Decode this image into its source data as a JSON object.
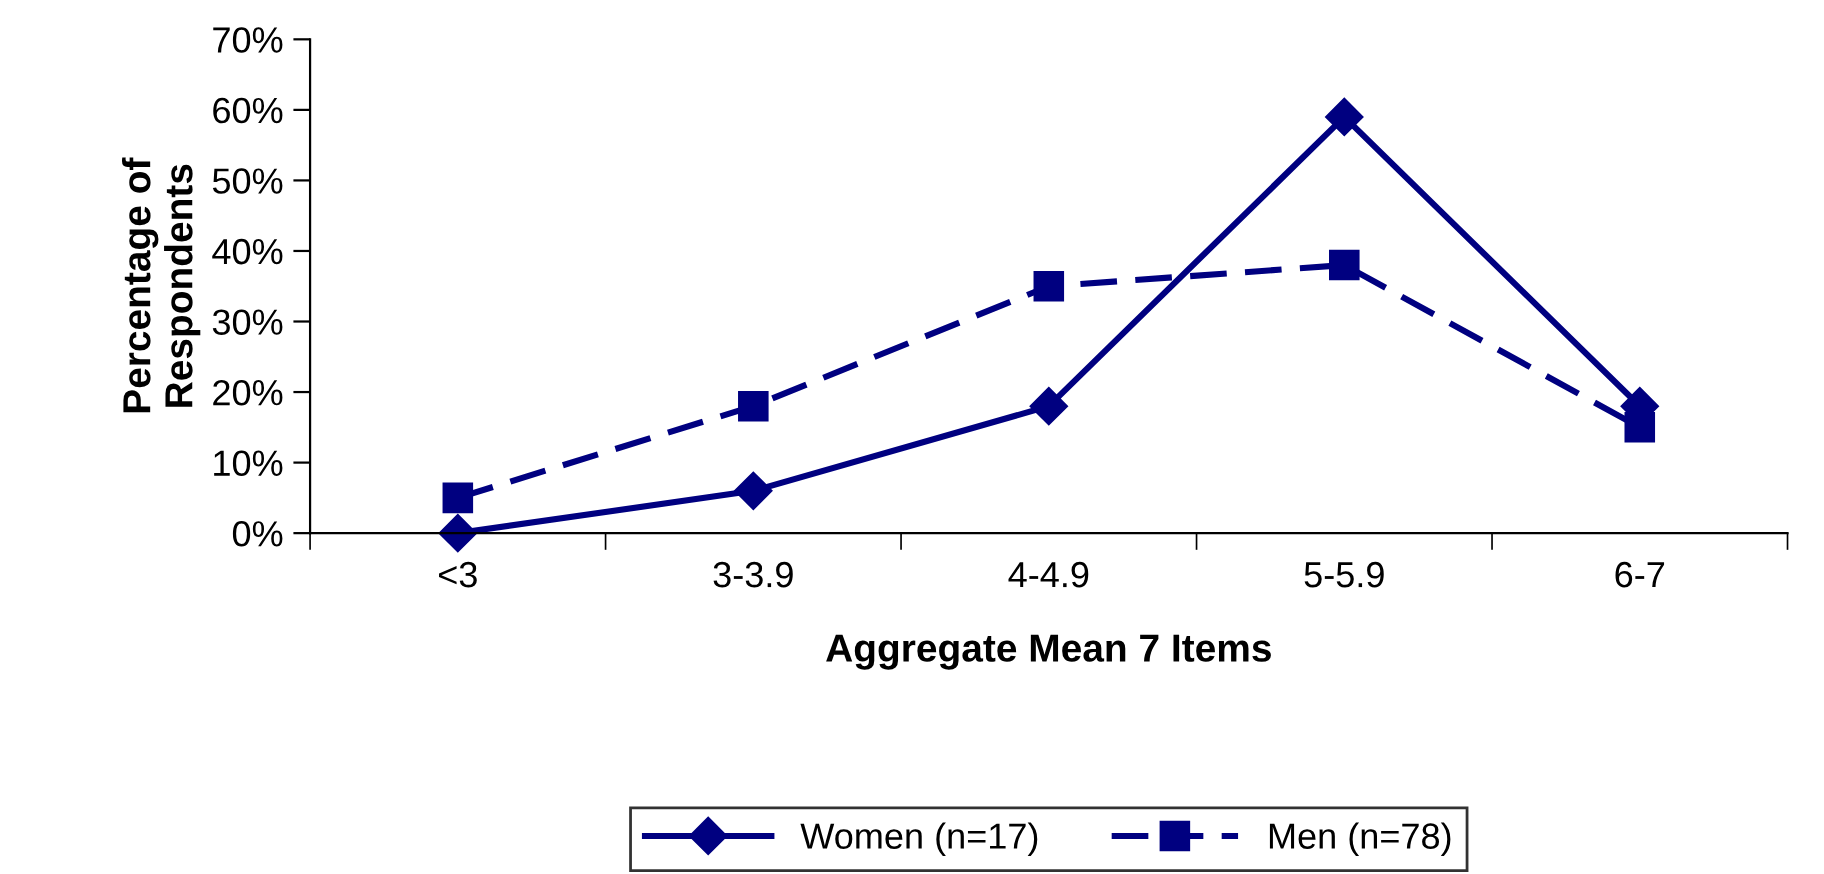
{
  "chart_data": {
    "type": "line",
    "xlabel": "Aggregate Mean 7 Items",
    "ylabel": "Percentage of\nRespondents",
    "categories": [
      "<3",
      "3-3.9",
      "4-4.9",
      "5-5.9",
      "6-7"
    ],
    "series": [
      {
        "name": "Women (n=17)",
        "color": "#000080",
        "values": [
          0,
          6,
          18,
          59,
          18
        ],
        "marker": "diamond",
        "line_style": "solid"
      },
      {
        "name": "Men (n=78)",
        "color": "#000080",
        "values": [
          5,
          18,
          35,
          38,
          15
        ],
        "marker": "square",
        "line_style": "dashed"
      }
    ],
    "ylim": [
      0,
      70
    ],
    "yticks": [
      {
        "value": 0,
        "label": "0%"
      },
      {
        "value": 10,
        "label": "10%"
      },
      {
        "value": 20,
        "label": "20%"
      },
      {
        "value": 30,
        "label": "30%"
      },
      {
        "value": 40,
        "label": "40%"
      },
      {
        "value": 50,
        "label": "50%"
      },
      {
        "value": 60,
        "label": "60%"
      },
      {
        "value": 70,
        "label": "70%"
      }
    ],
    "grid": false,
    "legend": "bottom"
  }
}
